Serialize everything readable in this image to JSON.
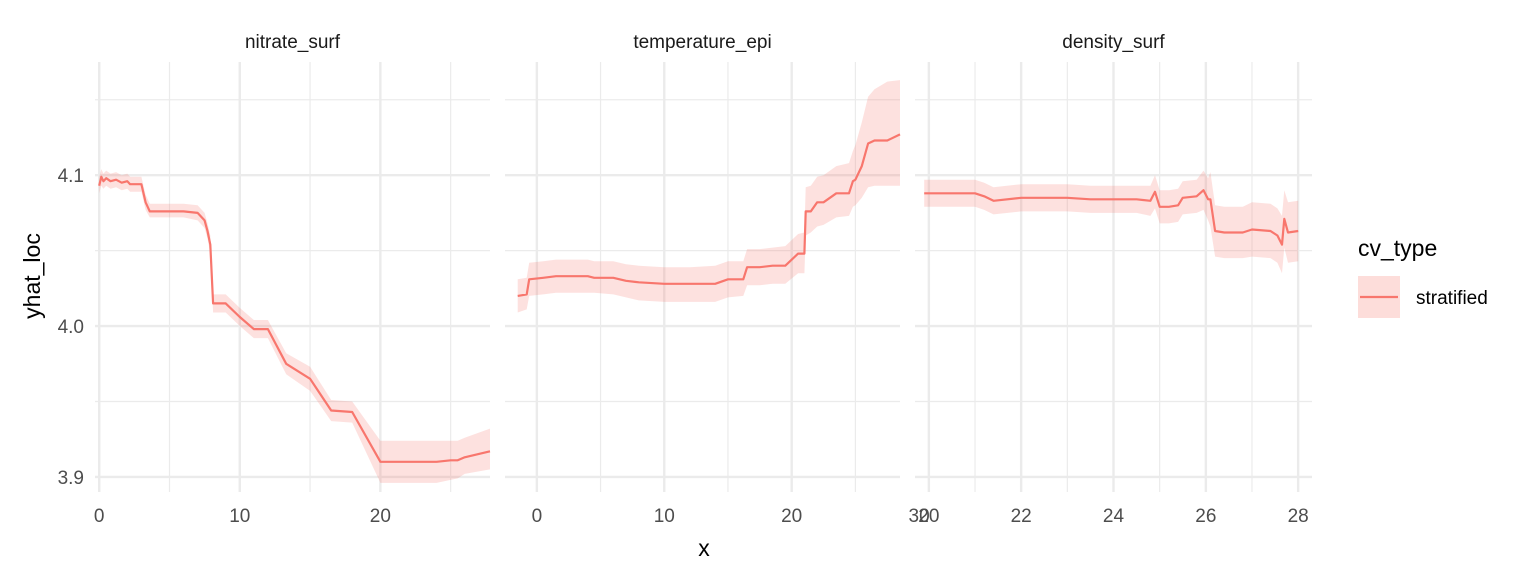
{
  "chart_data": {
    "type": "line",
    "xlabel": "x",
    "ylabel": "yhat_loc",
    "ylim": [
      3.89,
      4.175
    ],
    "y_ticks": [
      "3.9",
      "4.0",
      "4.1"
    ],
    "legend": {
      "title": "cv_type",
      "placement": "right",
      "entries": [
        "stratified"
      ]
    },
    "colors": {
      "line": "#F8766D",
      "ribbon": "#F8766D",
      "grid": "#EBEBEB"
    },
    "grid": true,
    "panels": [
      {
        "strip": "nitrate_surf",
        "xlim": [
          -0.3,
          27.8
        ],
        "x_ticks": [
          "0",
          "10",
          "20"
        ],
        "series": [
          {
            "name": "stratified",
            "x": [
              0,
              0.15,
              0.3,
              0.5,
              0.8,
              1.2,
              1.6,
              2.0,
              2.2,
              3.0,
              3.3,
              3.6,
              5.0,
              6.0,
              7.0,
              7.5,
              7.7,
              7.9,
              8.1,
              9.0,
              10.0,
              11.0,
              12.0,
              13.3,
              15.0,
              16.5,
              18.0,
              20.0,
              22.0,
              24.0,
              25.0,
              25.5,
              26.0,
              27.8
            ],
            "y": [
              4.093,
              4.099,
              4.096,
              4.098,
              4.096,
              4.097,
              4.095,
              4.096,
              4.094,
              4.094,
              4.082,
              4.076,
              4.076,
              4.076,
              4.075,
              4.07,
              4.063,
              4.054,
              4.015,
              4.015,
              4.006,
              3.998,
              3.998,
              3.975,
              3.965,
              3.944,
              3.943,
              3.91,
              3.91,
              3.91,
              3.911,
              3.911,
              3.913,
              3.917
            ],
            "lower": [
              4.088,
              4.093,
              4.091,
              4.093,
              4.091,
              4.092,
              4.09,
              4.091,
              4.089,
              4.089,
              4.077,
              4.072,
              4.072,
              4.072,
              4.07,
              4.065,
              4.058,
              4.048,
              4.009,
              4.009,
              4.0,
              3.992,
              3.992,
              3.968,
              3.957,
              3.937,
              3.936,
              3.896,
              3.896,
              3.896,
              3.898,
              3.899,
              3.902,
              3.905
            ],
            "upper": [
              4.099,
              4.104,
              4.101,
              4.103,
              4.101,
              4.102,
              4.1,
              4.101,
              4.099,
              4.099,
              4.087,
              4.081,
              4.081,
              4.081,
              4.08,
              4.075,
              4.068,
              4.06,
              4.021,
              4.021,
              4.012,
              4.004,
              4.004,
              3.982,
              3.973,
              3.951,
              3.95,
              3.924,
              3.924,
              3.924,
              3.924,
              3.924,
              3.926,
              3.932
            ]
          }
        ]
      },
      {
        "strip": "temperature_epi",
        "xlim": [
          -2.5,
          28.5
        ],
        "x_ticks": [
          "0",
          "10",
          "20",
          "30"
        ],
        "series": [
          {
            "name": "stratified",
            "x": [
              -1.5,
              -0.8,
              -0.6,
              0.5,
              1.5,
              2.5,
              4.0,
              4.5,
              6.0,
              7.0,
              8.0,
              10.0,
              12.0,
              14.0,
              15.0,
              16.2,
              16.5,
              17.5,
              18.5,
              19.5,
              20.5,
              21.0,
              21.1,
              21.5,
              22.0,
              22.5,
              23.5,
              24.5,
              24.8,
              25.0,
              25.5,
              26.0,
              26.5,
              27.5,
              28.5
            ],
            "y": [
              4.02,
              4.021,
              4.031,
              4.032,
              4.033,
              4.033,
              4.033,
              4.032,
              4.032,
              4.03,
              4.029,
              4.028,
              4.028,
              4.028,
              4.031,
              4.031,
              4.039,
              4.039,
              4.04,
              4.04,
              4.048,
              4.048,
              4.076,
              4.076,
              4.082,
              4.082,
              4.088,
              4.088,
              4.096,
              4.097,
              4.106,
              4.121,
              4.123,
              4.123,
              4.127
            ],
            "lower": [
              4.009,
              4.011,
              4.02,
              4.021,
              4.022,
              4.022,
              4.022,
              4.022,
              4.021,
              4.019,
              4.017,
              4.016,
              4.016,
              4.016,
              4.019,
              4.02,
              4.027,
              4.027,
              4.028,
              4.028,
              4.035,
              4.035,
              4.06,
              4.062,
              4.066,
              4.067,
              4.072,
              4.073,
              4.079,
              4.08,
              4.085,
              4.092,
              4.093,
              4.093,
              4.093
            ],
            "upper": [
              4.031,
              4.032,
              4.042,
              4.043,
              4.044,
              4.044,
              4.044,
              4.043,
              4.043,
              4.041,
              4.04,
              4.039,
              4.039,
              4.04,
              4.043,
              4.043,
              4.051,
              4.051,
              4.052,
              4.053,
              4.061,
              4.062,
              4.092,
              4.093,
              4.099,
              4.1,
              4.106,
              4.108,
              4.116,
              4.12,
              4.135,
              4.152,
              4.157,
              4.162,
              4.163
            ]
          }
        ]
      },
      {
        "strip": "density_surf",
        "xlim": [
          19.7,
          28.3
        ],
        "x_ticks": [
          "20",
          "22",
          "24",
          "26",
          "28"
        ],
        "series": [
          {
            "name": "stratified",
            "x": [
              19.9,
              21.0,
              21.2,
              21.4,
              22.0,
              22.5,
              23.0,
              23.5,
              24.0,
              24.5,
              24.8,
              24.9,
              25.0,
              25.2,
              25.4,
              25.5,
              25.8,
              25.95,
              26.05,
              26.1,
              26.2,
              26.4,
              26.8,
              27.0,
              27.4,
              27.55,
              27.65,
              27.7,
              27.78,
              28.0
            ],
            "y": [
              4.088,
              4.088,
              4.086,
              4.083,
              4.085,
              4.085,
              4.085,
              4.084,
              4.084,
              4.084,
              4.083,
              4.089,
              4.079,
              4.079,
              4.08,
              4.085,
              4.086,
              4.09,
              4.084,
              4.084,
              4.063,
              4.062,
              4.062,
              4.064,
              4.063,
              4.06,
              4.054,
              4.071,
              4.062,
              4.063
            ],
            "lower": [
              4.079,
              4.079,
              4.077,
              4.074,
              4.076,
              4.076,
              4.076,
              4.075,
              4.075,
              4.075,
              4.073,
              4.078,
              4.068,
              4.068,
              4.069,
              4.074,
              4.075,
              4.077,
              4.07,
              4.066,
              4.046,
              4.045,
              4.045,
              4.046,
              4.045,
              4.042,
              4.035,
              4.052,
              4.042,
              4.043
            ],
            "upper": [
              4.097,
              4.097,
              4.095,
              4.092,
              4.094,
              4.094,
              4.094,
              4.093,
              4.093,
              4.093,
              4.093,
              4.1,
              4.09,
              4.09,
              4.091,
              4.096,
              4.097,
              4.103,
              4.098,
              4.102,
              4.08,
              4.079,
              4.079,
              4.082,
              4.081,
              4.078,
              4.073,
              4.09,
              4.082,
              4.083
            ]
          }
        ]
      }
    ]
  }
}
